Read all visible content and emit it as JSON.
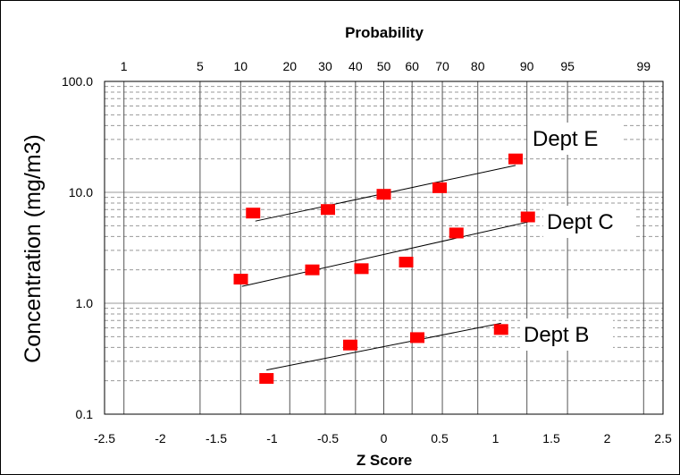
{
  "chart_data": {
    "type": "scatter",
    "title": "Probability",
    "xlabel": "Z Score",
    "ylabel": "Concentration (mg/m3)",
    "xlim": [
      -2.5,
      2.5
    ],
    "ylim": [
      0.1,
      100
    ],
    "yscale": "log",
    "grid": true,
    "x_ticks": [
      "-2.5",
      "-2",
      "-1.5",
      "-1",
      "-0.5",
      "0",
      "0.5",
      "1",
      "1.5",
      "2",
      "2.5"
    ],
    "y_ticks": [
      "0.1",
      "1.0",
      "10.0",
      "100.0"
    ],
    "probability_ticks": [
      "1",
      "5",
      "10",
      "20",
      "30",
      "40",
      "50",
      "60",
      "70",
      "80",
      "90",
      "95",
      "99"
    ],
    "marker_color": "#ff0000",
    "series": [
      {
        "name": "Dept E",
        "x": [
          -1.17,
          -0.5,
          0.0,
          0.5,
          1.18
        ],
        "y": [
          6.5,
          7.0,
          9.6,
          11.0,
          20.0
        ],
        "fit": {
          "x": [
            -1.15,
            1.18
          ],
          "y": [
            5.5,
            17.5
          ]
        }
      },
      {
        "name": "Dept C",
        "x": [
          -1.28,
          -0.64,
          -0.2,
          0.2,
          0.65,
          1.29
        ],
        "y": [
          1.65,
          2.0,
          2.05,
          2.35,
          4.3,
          6.0
        ],
        "fit": {
          "x": [
            -1.27,
            1.29
          ],
          "y": [
            1.42,
            5.4
          ]
        }
      },
      {
        "name": "Dept B",
        "x": [
          -1.05,
          -0.3,
          0.3,
          1.05
        ],
        "y": [
          0.21,
          0.42,
          0.49,
          0.58
        ],
        "fit": {
          "x": [
            -1.05,
            1.05
          ],
          "y": [
            0.25,
            0.66
          ]
        }
      }
    ]
  }
}
